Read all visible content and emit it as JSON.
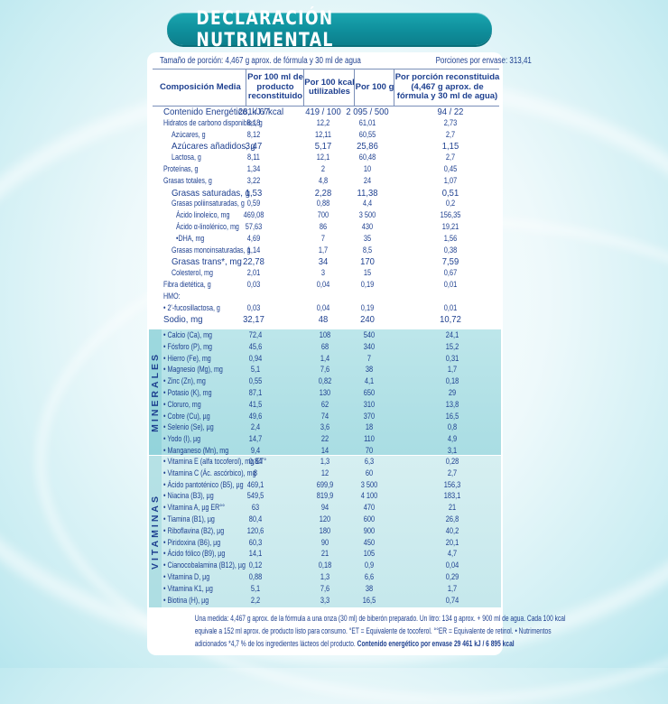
{
  "title": "DECLARACIÓN NUTRIMENTAL",
  "portion": {
    "size": "Tamaño de porción: 4,467 g aprox. de fórmula y 30 ml de agua",
    "servings": "Porciones por envase: 313,41"
  },
  "headers": [
    "Composición Media",
    "Por 100 ml de producto reconstituido",
    "Por 100 kcal utilizables",
    "Por 100 g",
    "Por porción reconstituida (4,467 g aprox. de fórmula y 30 ml de agua)"
  ],
  "rows": [
    {
      "label": "Contenido Energético, kJ / kcal",
      "v1": "281 / 67",
      "v2": "419 / 100",
      "v3": "2 095 / 500",
      "v4": "94 / 22"
    },
    {
      "label": "Hidratos de carbono disponibles, g",
      "v1": "8,18",
      "v2": "12,2",
      "v3": "61,01",
      "v4": "2,73"
    },
    {
      "label": "Azúcares, g",
      "v1": "8,12",
      "v2": "12,11",
      "v3": "60,55",
      "v4": "2,7"
    },
    {
      "label": "Azúcares añadidos, g",
      "v1": "3,47",
      "v2": "5,17",
      "v3": "25,86",
      "v4": "1,15"
    },
    {
      "label": "Lactosa, g",
      "v1": "8,11",
      "v2": "12,1",
      "v3": "60,48",
      "v4": "2,7"
    },
    {
      "label": "Proteínas, g",
      "v1": "1,34",
      "v2": "2",
      "v3": "10",
      "v4": "0,45"
    },
    {
      "label": "Grasas totales, g",
      "v1": "3,22",
      "v2": "4,8",
      "v3": "24",
      "v4": "1,07"
    },
    {
      "label": "Grasas saturadas, g",
      "v1": "1,53",
      "v2": "2,28",
      "v3": "11,38",
      "v4": "0,51"
    },
    {
      "label": "Grasas poliinsaturadas, g",
      "v1": "0,59",
      "v2": "0,88",
      "v3": "4,4",
      "v4": "0,2"
    },
    {
      "label": "Ácido linoleico, mg",
      "v1": "469,08",
      "v2": "700",
      "v3": "3 500",
      "v4": "156,35"
    },
    {
      "label": "Ácido α-linolénico, mg",
      "v1": "57,63",
      "v2": "86",
      "v3": "430",
      "v4": "19,21"
    },
    {
      "label": "•DHA, mg",
      "v1": "4,69",
      "v2": "7",
      "v3": "35",
      "v4": "1,56"
    },
    {
      "label": "Grasas monoinsaturadas, g",
      "v1": "1,14",
      "v2": "1,7",
      "v3": "8,5",
      "v4": "0,38"
    },
    {
      "label": "Grasas trans*, mg",
      "v1": "22,78",
      "v2": "34",
      "v3": "170",
      "v4": "7,59"
    },
    {
      "label": "Colesterol, mg",
      "v1": "2,01",
      "v2": "3",
      "v3": "15",
      "v4": "0,67"
    },
    {
      "label": "Fibra dietética, g",
      "v1": "0,03",
      "v2": "0,04",
      "v3": "0,19",
      "v4": "0,01"
    },
    {
      "label": "HMO:",
      "v1": "",
      "v2": "",
      "v3": "",
      "v4": ""
    },
    {
      "label": "• 2'-fucosillactosa, g",
      "v1": "0,03",
      "v2": "0,04",
      "v3": "0,19",
      "v4": "0,01"
    },
    {
      "label": "Sodio, mg",
      "v1": "32,17",
      "v2": "48",
      "v3": "240",
      "v4": "10,72"
    }
  ],
  "minerals": {
    "label": "MINERALES",
    "rows": [
      {
        "label": "• Calcio (Ca), mg",
        "v1": "72,4",
        "v2": "108",
        "v3": "540",
        "v4": "24,1"
      },
      {
        "label": "• Fósforo (P), mg",
        "v1": "45,6",
        "v2": "68",
        "v3": "340",
        "v4": "15,2"
      },
      {
        "label": "• Hierro (Fe), mg",
        "v1": "0,94",
        "v2": "1,4",
        "v3": "7",
        "v4": "0,31"
      },
      {
        "label": "• Magnesio (Mg), mg",
        "v1": "5,1",
        "v2": "7,6",
        "v3": "38",
        "v4": "1,7"
      },
      {
        "label": "• Zinc (Zn), mg",
        "v1": "0,55",
        "v2": "0,82",
        "v3": "4,1",
        "v4": "0,18"
      },
      {
        "label": "• Potasio (K), mg",
        "v1": "87,1",
        "v2": "130",
        "v3": "650",
        "v4": "29"
      },
      {
        "label": "• Cloruro, mg",
        "v1": "41,5",
        "v2": "62",
        "v3": "310",
        "v4": "13,8"
      },
      {
        "label": "• Cobre (Cu), µg",
        "v1": "49,6",
        "v2": "74",
        "v3": "370",
        "v4": "16,5"
      },
      {
        "label": "• Selenio (Se), µg",
        "v1": "2,4",
        "v2": "3,6",
        "v3": "18",
        "v4": "0,8"
      },
      {
        "label": "• Yodo (I), µg",
        "v1": "14,7",
        "v2": "22",
        "v3": "110",
        "v4": "4,9"
      },
      {
        "label": "• Manganeso (Mn), mg",
        "v1": "9,4",
        "v2": "14",
        "v3": "70",
        "v4": "3,1"
      }
    ]
  },
  "vitamins": {
    "label": "VITAMINAS",
    "rows": [
      {
        "label": "• Vitamina E (alfa tocoferol), mg ET°",
        "v1": "0,84",
        "v2": "1,3",
        "v3": "6,3",
        "v4": "0,28"
      },
      {
        "label": "• Vitamina C (Ác. ascórbico), mg",
        "v1": "8",
        "v2": "12",
        "v3": "60",
        "v4": "2,7"
      },
      {
        "label": "• Ácido pantoténico (B5), µg",
        "v1": "469,1",
        "v2": "699,9",
        "v3": "3 500",
        "v4": "156,3"
      },
      {
        "label": "• Niacina (B3), µg",
        "v1": "549,5",
        "v2": "819,9",
        "v3": "4 100",
        "v4": "183,1"
      },
      {
        "label": "• Vitamina A, µg ER°°",
        "v1": "63",
        "v2": "94",
        "v3": "470",
        "v4": "21"
      },
      {
        "label": "• Tiamina (B1), µg",
        "v1": "80,4",
        "v2": "120",
        "v3": "600",
        "v4": "26,8"
      },
      {
        "label": "• Riboflavina (B2), µg",
        "v1": "120,6",
        "v2": "180",
        "v3": "900",
        "v4": "40,2"
      },
      {
        "label": "• Piridoxina (B6), µg",
        "v1": "60,3",
        "v2": "90",
        "v3": "450",
        "v4": "20,1"
      },
      {
        "label": "• Ácido fólico (B9), µg",
        "v1": "14,1",
        "v2": "21",
        "v3": "105",
        "v4": "4,7"
      },
      {
        "label": "• Cianocobalamina (B12), µg",
        "v1": "0,12",
        "v2": "0,18",
        "v3": "0,9",
        "v4": "0,04"
      },
      {
        "label": "• Vitamina D, µg",
        "v1": "0,88",
        "v2": "1,3",
        "v3": "6,6",
        "v4": "0,29"
      },
      {
        "label": "• Vitamina K1, µg",
        "v1": "5,1",
        "v2": "7,6",
        "v3": "38",
        "v4": "1,7"
      },
      {
        "label": "• Biotina (H), µg",
        "v1": "2,2",
        "v2": "3,3",
        "v3": "16,5",
        "v4": "0,74"
      }
    ]
  },
  "footnote": {
    "line1": "Una medida: 4,467 g aprox. de la fórmula a una onza (30 ml) de biberón preparado. Un litro: 134 g aprox. + 900 ml de agua. Cada 100 kcal",
    "line2": "equivale a 152 ml aprox. de producto listo para consumo. °ET = Equivalente de tocoferol. °°ER = Equivalente de retinol. • Nutrimentos",
    "line3": "adicionados *4,7 % de los ingredientes lácteos del producto.",
    "energy": "Contenido energético por envase 29 461 kJ / 6 895 kcal"
  },
  "colors": {
    "text": "#1d3f8f",
    "title_bg": "#0f8f9c",
    "minerals_band": "#b3e1e6",
    "vitamins_band": "#cdebee"
  }
}
